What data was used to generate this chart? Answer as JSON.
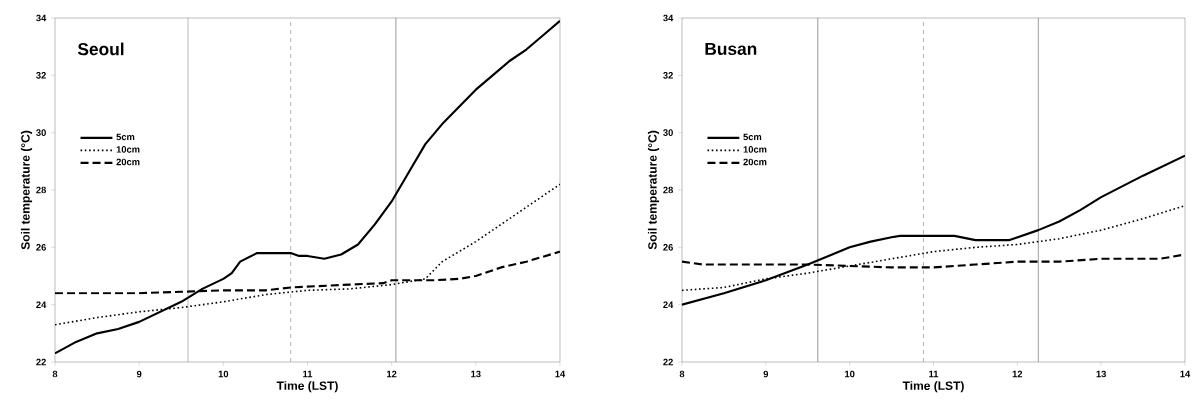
{
  "chart_data": [
    {
      "type": "line",
      "title": "Seoul",
      "xlabel": "Time (LST)",
      "ylabel": "Soil temperature (°C)",
      "xlim": [
        8,
        14
      ],
      "ylim": [
        22,
        34
      ],
      "xticks": [
        8,
        9,
        10,
        11,
        12,
        13,
        14
      ],
      "yticks": [
        22,
        24,
        26,
        28,
        30,
        32,
        34
      ],
      "legend": "left",
      "grid": false,
      "ref_lines": [
        {
          "axis": "x",
          "value": 9.58,
          "color": "#808080",
          "line_style": "solid"
        },
        {
          "axis": "x",
          "value": 10.8,
          "color": "#a0a0a0",
          "line_style": "dashed"
        },
        {
          "axis": "x",
          "value": 12.05,
          "color": "#808080",
          "line_style": "solid"
        }
      ],
      "series": [
        {
          "name": "5cm",
          "color": "#000000",
          "line_style": "solid",
          "x": [
            8,
            8.25,
            8.5,
            8.75,
            9,
            9.25,
            9.5,
            9.75,
            10,
            10.1,
            10.2,
            10.4,
            10.6,
            10.8,
            10.9,
            11,
            11.2,
            11.4,
            11.6,
            11.8,
            12,
            12.2,
            12.4,
            12.6,
            12.8,
            13,
            13.2,
            13.4,
            13.6,
            13.8,
            14
          ],
          "values": [
            22.3,
            22.7,
            23.0,
            23.15,
            23.4,
            23.75,
            24.1,
            24.55,
            24.9,
            25.1,
            25.5,
            25.8,
            25.8,
            25.8,
            25.7,
            25.7,
            25.6,
            25.75,
            26.1,
            26.8,
            27.6,
            28.6,
            29.6,
            30.3,
            30.9,
            31.5,
            32.0,
            32.5,
            32.9,
            33.4,
            33.9
          ]
        },
        {
          "name": "10cm",
          "color": "#000000",
          "line_style": "dotted",
          "x": [
            8,
            8.5,
            9,
            9.5,
            10,
            10.5,
            11,
            11.5,
            12,
            12.4,
            12.6,
            13,
            13.5,
            14
          ],
          "values": [
            23.3,
            23.55,
            23.75,
            23.9,
            24.1,
            24.35,
            24.5,
            24.55,
            24.7,
            24.9,
            25.5,
            26.2,
            27.2,
            28.2
          ]
        },
        {
          "name": "20cm",
          "color": "#000000",
          "line_style": "dashed",
          "x": [
            8,
            9,
            9.5,
            10,
            10.5,
            10.8,
            11.5,
            11.9,
            12,
            12.5,
            12.8,
            13,
            13.3,
            13.6,
            14
          ],
          "values": [
            24.4,
            24.4,
            24.45,
            24.5,
            24.5,
            24.6,
            24.7,
            24.75,
            24.85,
            24.85,
            24.9,
            25.0,
            25.3,
            25.5,
            25.85
          ]
        }
      ]
    },
    {
      "type": "line",
      "title": "Busan",
      "xlabel": "Time (LST)",
      "ylabel": "Soil temperature (°C)",
      "xlim": [
        8,
        14
      ],
      "ylim": [
        22,
        34
      ],
      "xticks": [
        8,
        9,
        10,
        11,
        12,
        13,
        14
      ],
      "yticks": [
        22,
        24,
        26,
        28,
        30,
        32,
        34
      ],
      "legend": "left",
      "grid": false,
      "ref_lines": [
        {
          "axis": "x",
          "value": 9.62,
          "color": "#808080",
          "line_style": "solid"
        },
        {
          "axis": "x",
          "value": 10.88,
          "color": "#a0a0a0",
          "line_style": "dashed"
        },
        {
          "axis": "x",
          "value": 12.25,
          "color": "#808080",
          "line_style": "solid"
        }
      ],
      "series": [
        {
          "name": "5cm",
          "color": "#000000",
          "line_style": "solid",
          "x": [
            8,
            8.5,
            9,
            9.5,
            9.75,
            10,
            10.25,
            10.5,
            10.6,
            11,
            11.25,
            11.5,
            11.9,
            12.25,
            12.5,
            12.75,
            13,
            13.5,
            14
          ],
          "values": [
            24.0,
            24.4,
            24.85,
            25.4,
            25.7,
            26.0,
            26.2,
            26.35,
            26.4,
            26.4,
            26.4,
            26.25,
            26.25,
            26.6,
            26.9,
            27.3,
            27.75,
            28.5,
            29.2
          ]
        },
        {
          "name": "10cm",
          "color": "#000000",
          "line_style": "dotted",
          "x": [
            8,
            8.5,
            9,
            9.5,
            10,
            10.5,
            11,
            11.5,
            12,
            12.5,
            13,
            13.5,
            14
          ],
          "values": [
            24.5,
            24.6,
            24.9,
            25.1,
            25.35,
            25.6,
            25.85,
            26.0,
            26.1,
            26.3,
            26.6,
            27.0,
            27.45
          ]
        },
        {
          "name": "20cm",
          "color": "#000000",
          "line_style": "dashed",
          "x": [
            8,
            8.25,
            9,
            9.5,
            10,
            10.5,
            11,
            11.5,
            12,
            12.5,
            13,
            13.7,
            14
          ],
          "values": [
            25.5,
            25.4,
            25.4,
            25.4,
            25.35,
            25.3,
            25.3,
            25.4,
            25.5,
            25.5,
            25.6,
            25.6,
            25.75
          ]
        }
      ]
    }
  ]
}
